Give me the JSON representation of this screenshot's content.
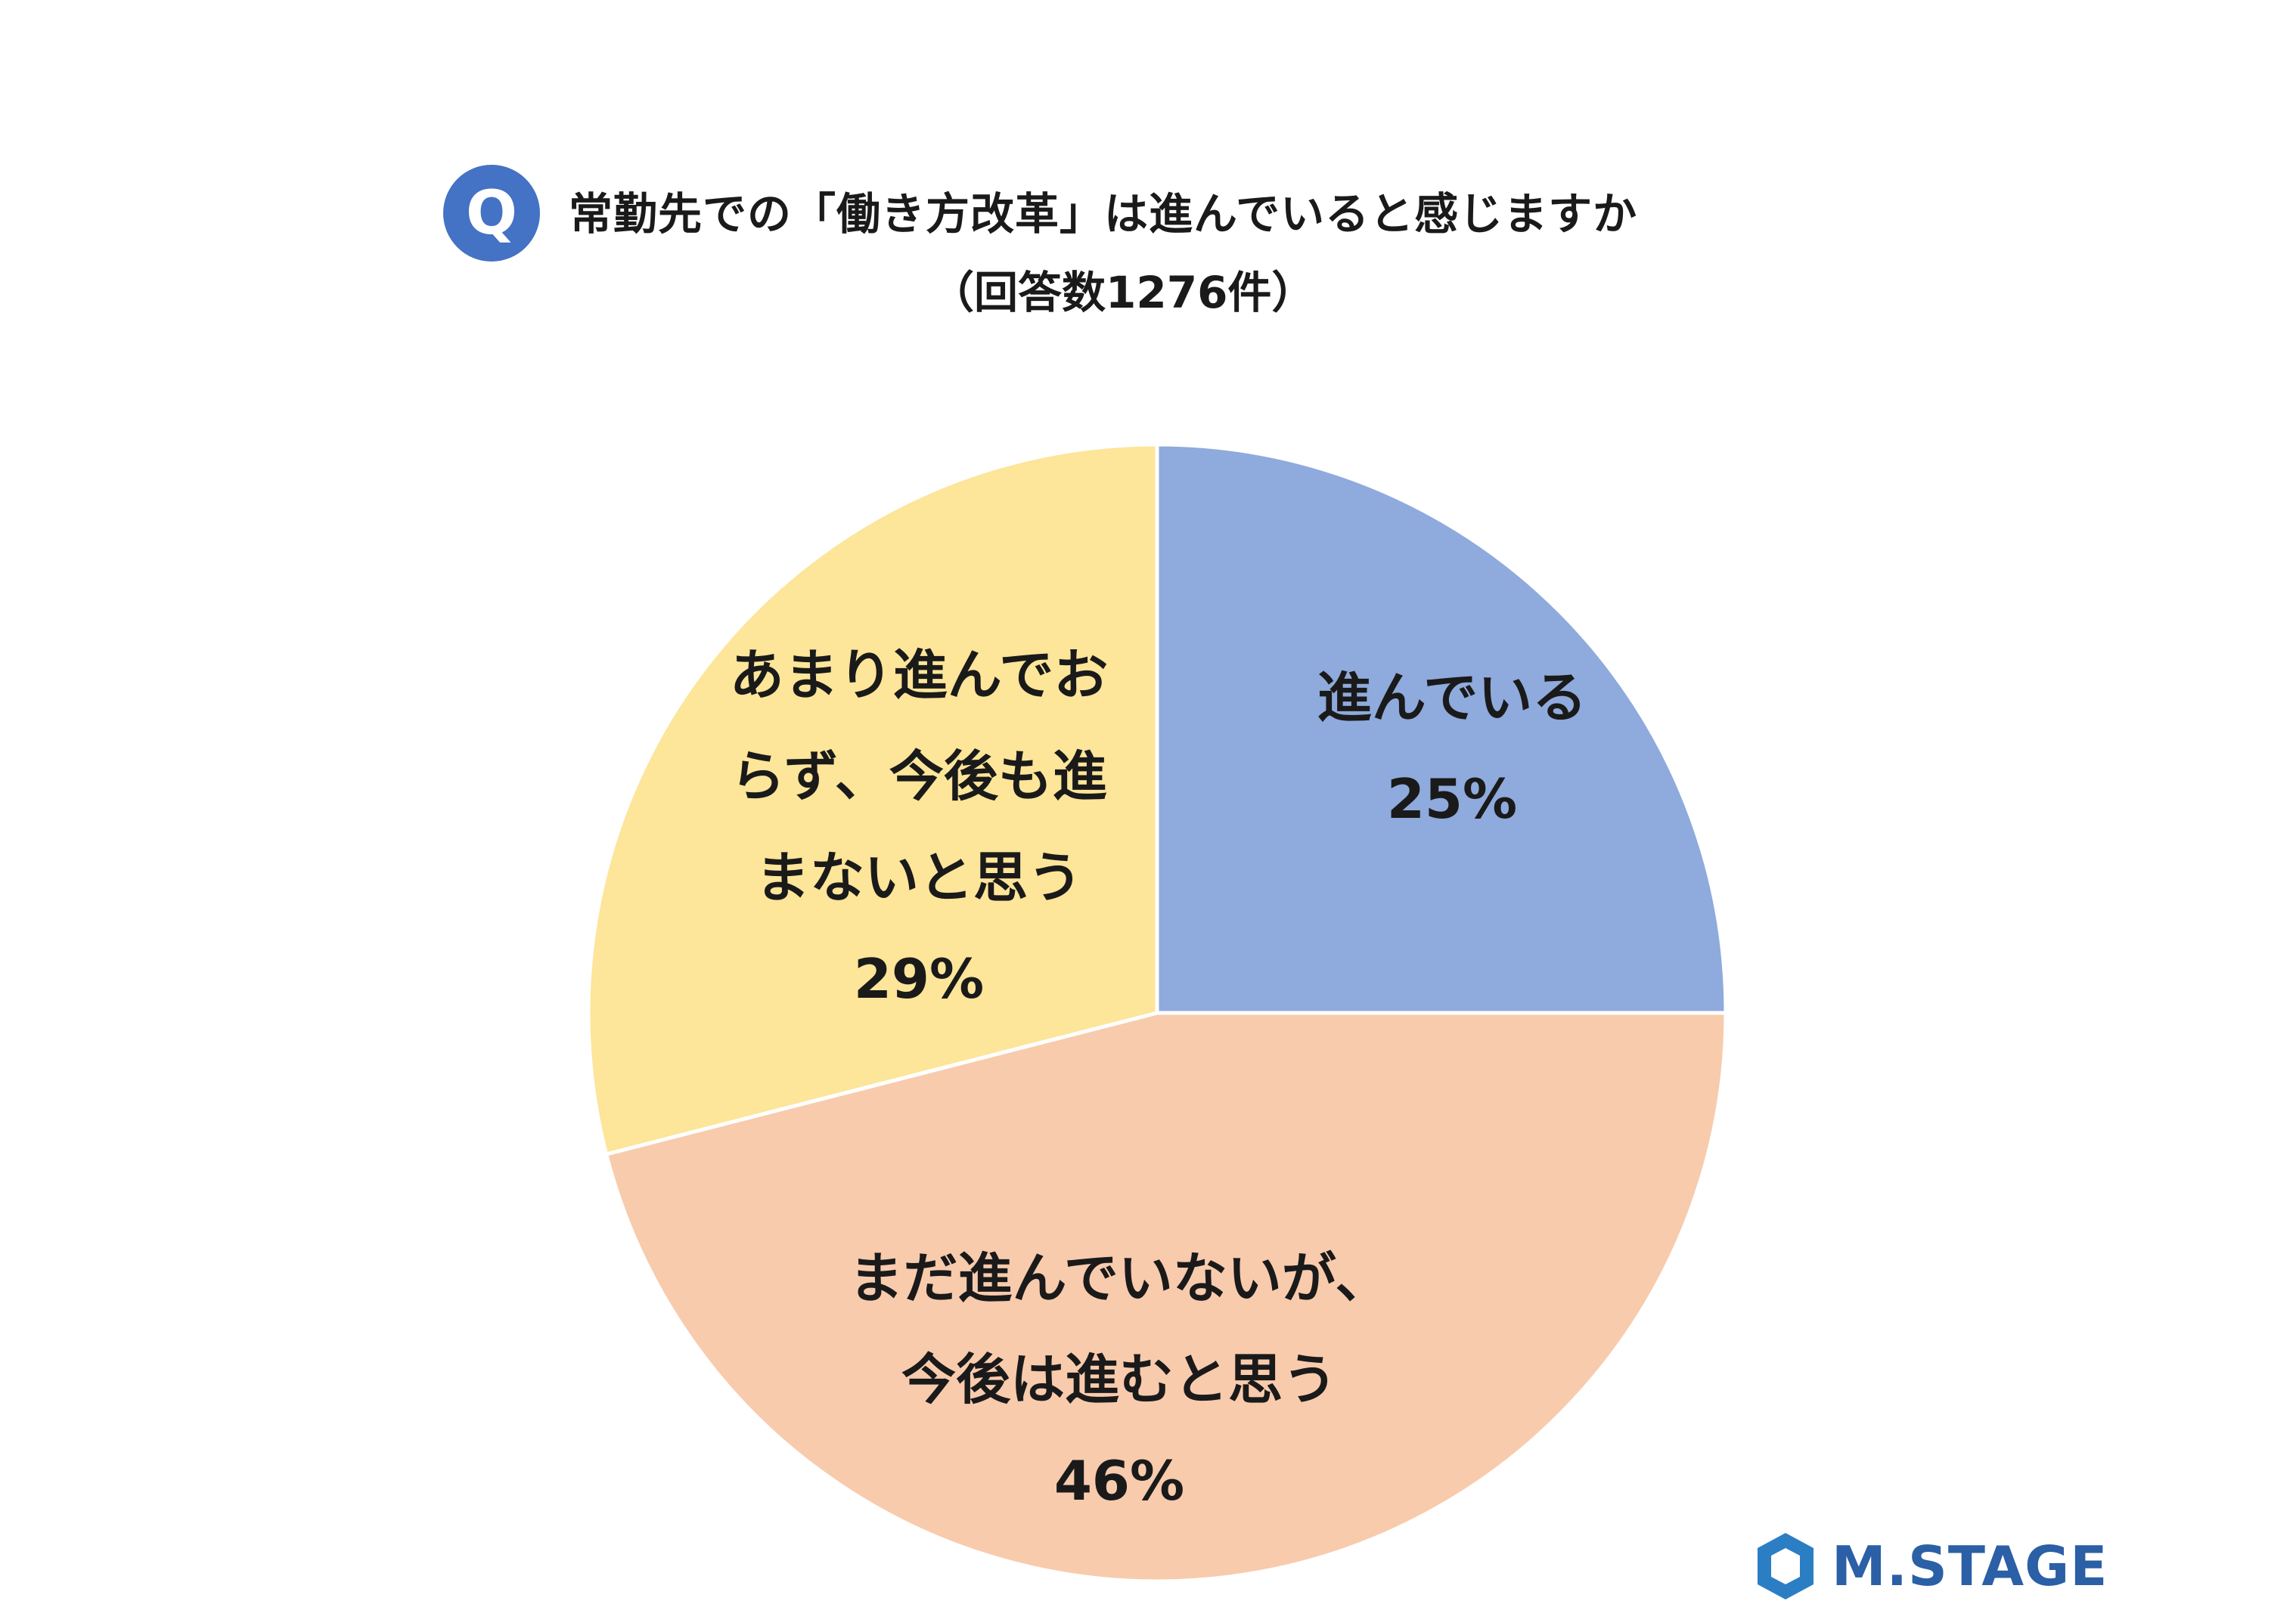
{
  "header": {
    "badge": "Q",
    "question": "常勤先での「働き方改革」は進んでいると感じますか",
    "subtitle": "（回答数1276件）"
  },
  "chart_data": {
    "type": "pie",
    "title": "常勤先での「働き方改革」は進んでいると感じますか",
    "subtitle": "（回答数1276件）",
    "start_angle_deg": 0,
    "direction": "clockwise",
    "slices": [
      {
        "label": "進んでいる",
        "value": 25,
        "value_label": "25%",
        "color": "#8faadc",
        "label_lines": [
          "進んでいる"
        ]
      },
      {
        "label": "まだ進んでいないが、今後は進むと思う",
        "value": 46,
        "value_label": "46%",
        "color": "#f8cbad",
        "label_lines": [
          "まだ進んでいないが、",
          "今後は進むと思う"
        ]
      },
      {
        "label": "あまり進んでおらず、今後も進まないと思う",
        "value": 29,
        "value_label": "29%",
        "color": "#fde599",
        "label_lines": [
          "あまり進んでお",
          "らず、今後も進",
          "まないと思う"
        ]
      }
    ]
  },
  "logo": {
    "text": "M.STAGE",
    "color": "#2b5fa6"
  }
}
